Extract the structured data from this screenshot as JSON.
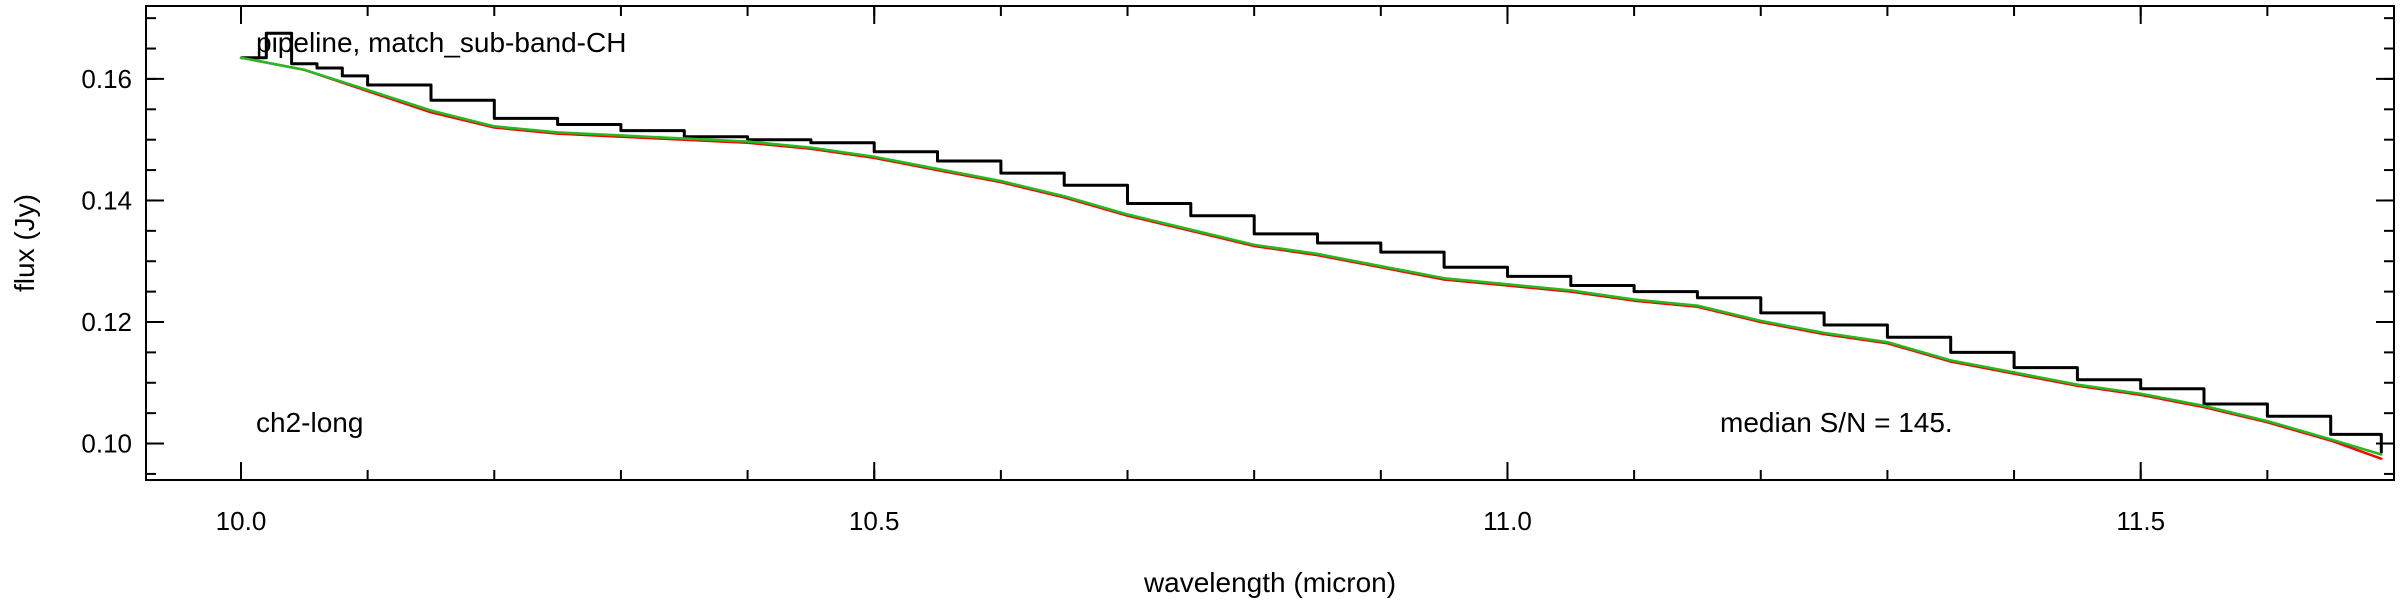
{
  "chart_data": {
    "type": "line",
    "title": "",
    "xlabel": "wavelength (micron)",
    "ylabel": "flux (Jy)",
    "xlim": [
      9.925,
      11.7
    ],
    "ylim": [
      0.094,
      0.172
    ],
    "xticks": [
      10.0,
      10.5,
      11.0,
      11.5
    ],
    "xtick_labels": [
      "10.0",
      "10.5",
      "11.0",
      "11.5"
    ],
    "x_minor_step": 0.1,
    "yticks": [
      0.1,
      0.12,
      0.14,
      0.16
    ],
    "ytick_labels": [
      "0.10",
      "0.12",
      "0.14",
      "0.16"
    ],
    "y_minor_step": 0.005,
    "grid": false,
    "legend": "none",
    "annotations": {
      "top_left": "pipeline, match_sub-band-CH",
      "bottom_left": "ch2-long",
      "bottom_right": "median S/N = 145."
    },
    "series": [
      {
        "color": "#000000",
        "style": "step",
        "x": [
          10.0,
          10.02,
          10.04,
          10.06,
          10.08,
          10.1,
          10.15,
          10.2,
          10.25,
          10.3,
          10.35,
          10.4,
          10.45,
          10.5,
          10.55,
          10.6,
          10.65,
          10.7,
          10.75,
          10.8,
          10.85,
          10.9,
          10.95,
          11.0,
          11.05,
          11.1,
          11.15,
          11.2,
          11.25,
          11.3,
          11.35,
          11.4,
          11.45,
          11.5,
          11.55,
          11.6,
          11.65,
          11.69
        ],
        "y": [
          0.1635,
          0.1675,
          0.1625,
          0.1618,
          0.1605,
          0.159,
          0.1565,
          0.1535,
          0.1525,
          0.1515,
          0.1505,
          0.15,
          0.1495,
          0.148,
          0.1465,
          0.1445,
          0.1425,
          0.1395,
          0.1375,
          0.1345,
          0.133,
          0.1315,
          0.129,
          0.1275,
          0.126,
          0.125,
          0.124,
          0.1215,
          0.1195,
          0.1175,
          0.115,
          0.1125,
          0.1105,
          0.109,
          0.1065,
          0.1045,
          0.1015,
          0.0985
        ]
      },
      {
        "color": "#ff0000",
        "style": "line",
        "x": [
          10.0,
          10.05,
          10.1,
          10.15,
          10.2,
          10.25,
          10.3,
          10.35,
          10.4,
          10.45,
          10.5,
          10.55,
          10.6,
          10.65,
          10.7,
          10.75,
          10.8,
          10.85,
          10.9,
          10.95,
          11.0,
          11.05,
          11.1,
          11.15,
          11.2,
          11.25,
          11.3,
          11.35,
          11.4,
          11.45,
          11.5,
          11.55,
          11.6,
          11.65,
          11.69
        ],
        "y": [
          0.1635,
          0.1615,
          0.158,
          0.1545,
          0.152,
          0.151,
          0.1505,
          0.15,
          0.1495,
          0.1485,
          0.147,
          0.145,
          0.143,
          0.1405,
          0.1375,
          0.135,
          0.1325,
          0.131,
          0.129,
          0.127,
          0.126,
          0.125,
          0.1235,
          0.1225,
          0.12,
          0.118,
          0.1165,
          0.1135,
          0.1115,
          0.1095,
          0.108,
          0.106,
          0.1035,
          0.1005,
          0.0975
        ]
      },
      {
        "color": "#22bb22",
        "style": "line",
        "x": [
          10.0,
          10.05,
          10.1,
          10.15,
          10.2,
          10.25,
          10.3,
          10.35,
          10.4,
          10.45,
          10.5,
          10.55,
          10.6,
          10.65,
          10.7,
          10.75,
          10.8,
          10.85,
          10.9,
          10.95,
          11.0,
          11.05,
          11.1,
          11.15,
          11.2,
          11.25,
          11.3,
          11.35,
          11.4,
          11.45,
          11.5,
          11.55,
          11.6,
          11.65,
          11.69
        ],
        "y": [
          0.1635,
          0.1615,
          0.1582,
          0.1548,
          0.1522,
          0.1512,
          0.1507,
          0.1502,
          0.1497,
          0.1487,
          0.1472,
          0.1452,
          0.1432,
          0.1407,
          0.1377,
          0.1352,
          0.1327,
          0.1312,
          0.1292,
          0.1272,
          0.1262,
          0.1252,
          0.1237,
          0.1227,
          0.1202,
          0.1182,
          0.1167,
          0.1137,
          0.1117,
          0.1097,
          0.1082,
          0.1062,
          0.1037,
          0.1007,
          0.0982
        ]
      }
    ]
  }
}
